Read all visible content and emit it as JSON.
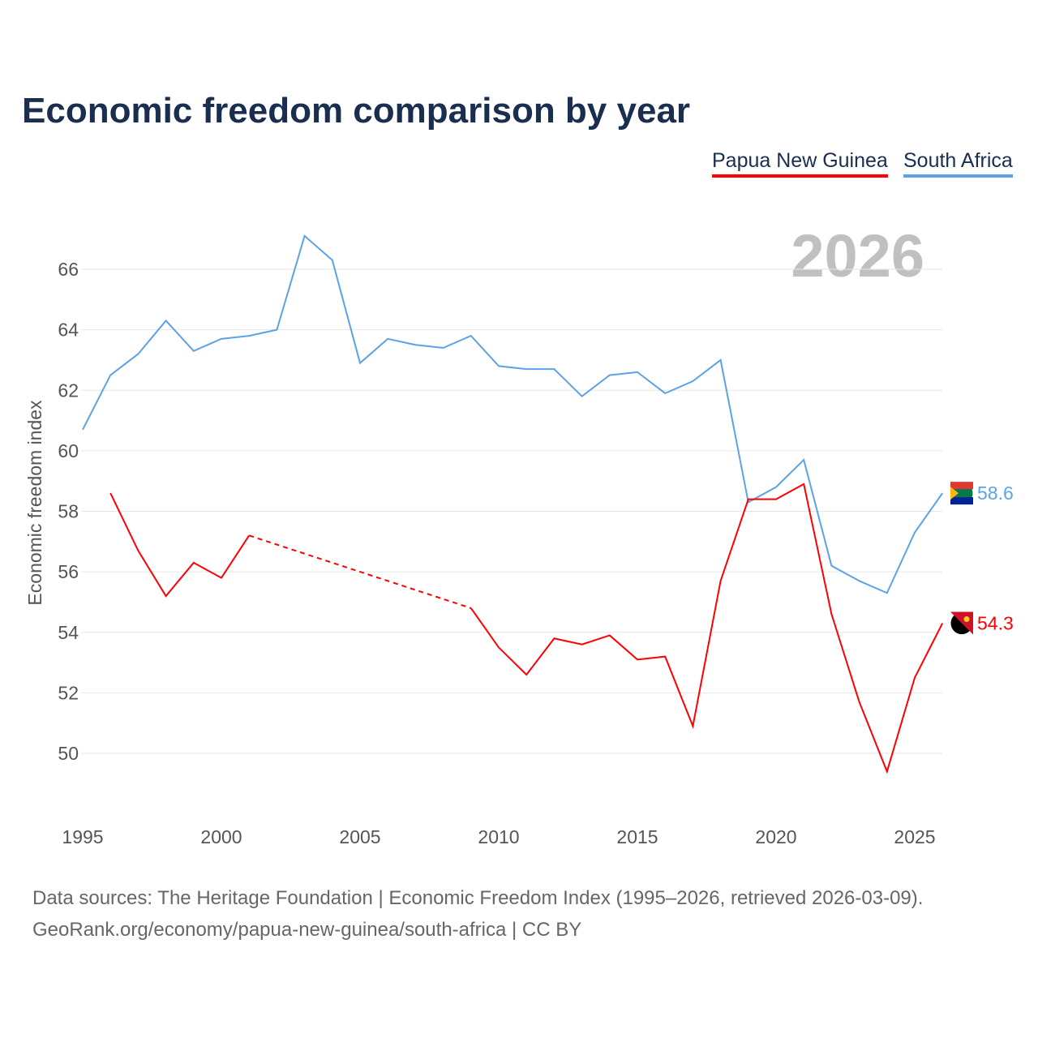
{
  "title": "Economic freedom comparison by year",
  "legend": [
    {
      "name": "Papua New Guinea",
      "color": "#ff0000"
    },
    {
      "name": "South Africa",
      "color": "#5ba3e6"
    }
  ],
  "source_line1": "Data sources: The Heritage Foundation | Economic Freedom Index (1995–2026, retrieved 2026-03-09).",
  "source_line2": "GeoRank.org/economy/papua-new-guinea/south-africa | CC BY",
  "chart_data": {
    "type": "line",
    "title": "Economic freedom comparison by year",
    "year_watermark": "2026",
    "ylabel": "Economic freedom index",
    "xlabel": "",
    "xlim": [
      1995,
      2026
    ],
    "ylim": [
      48,
      68
    ],
    "xticks": [
      1995,
      2000,
      2005,
      2010,
      2015,
      2020,
      2025
    ],
    "yticks": [
      50,
      52,
      54,
      56,
      58,
      60,
      62,
      64,
      66
    ],
    "grid": true,
    "legend_position": "top-right",
    "x": [
      1995,
      1996,
      1997,
      1998,
      1999,
      2000,
      2001,
      2002,
      2003,
      2004,
      2005,
      2006,
      2007,
      2008,
      2009,
      2010,
      2011,
      2012,
      2013,
      2014,
      2015,
      2016,
      2017,
      2018,
      2019,
      2020,
      2021,
      2022,
      2023,
      2024,
      2025,
      2026
    ],
    "series": [
      {
        "name": "South Africa",
        "color": "#5ba3e6",
        "end_label": "58.6",
        "values": [
          60.7,
          62.5,
          63.2,
          64.3,
          63.3,
          63.7,
          63.8,
          64.0,
          67.1,
          66.3,
          62.9,
          63.7,
          63.5,
          63.4,
          63.8,
          62.8,
          62.7,
          62.7,
          61.8,
          62.5,
          62.6,
          61.9,
          62.3,
          63.0,
          58.3,
          58.8,
          59.7,
          56.2,
          55.7,
          55.3,
          57.3,
          58.6
        ]
      },
      {
        "name": "Papua New Guinea",
        "color": "#ff0000",
        "end_label": "54.3",
        "values": [
          null,
          58.6,
          56.7,
          55.2,
          56.3,
          55.8,
          57.2,
          null,
          null,
          null,
          null,
          null,
          null,
          null,
          54.8,
          53.5,
          52.6,
          53.8,
          53.6,
          53.9,
          53.1,
          53.2,
          50.9,
          55.7,
          58.4,
          58.4,
          58.9,
          54.6,
          51.7,
          49.4,
          52.5,
          54.3
        ]
      }
    ]
  }
}
